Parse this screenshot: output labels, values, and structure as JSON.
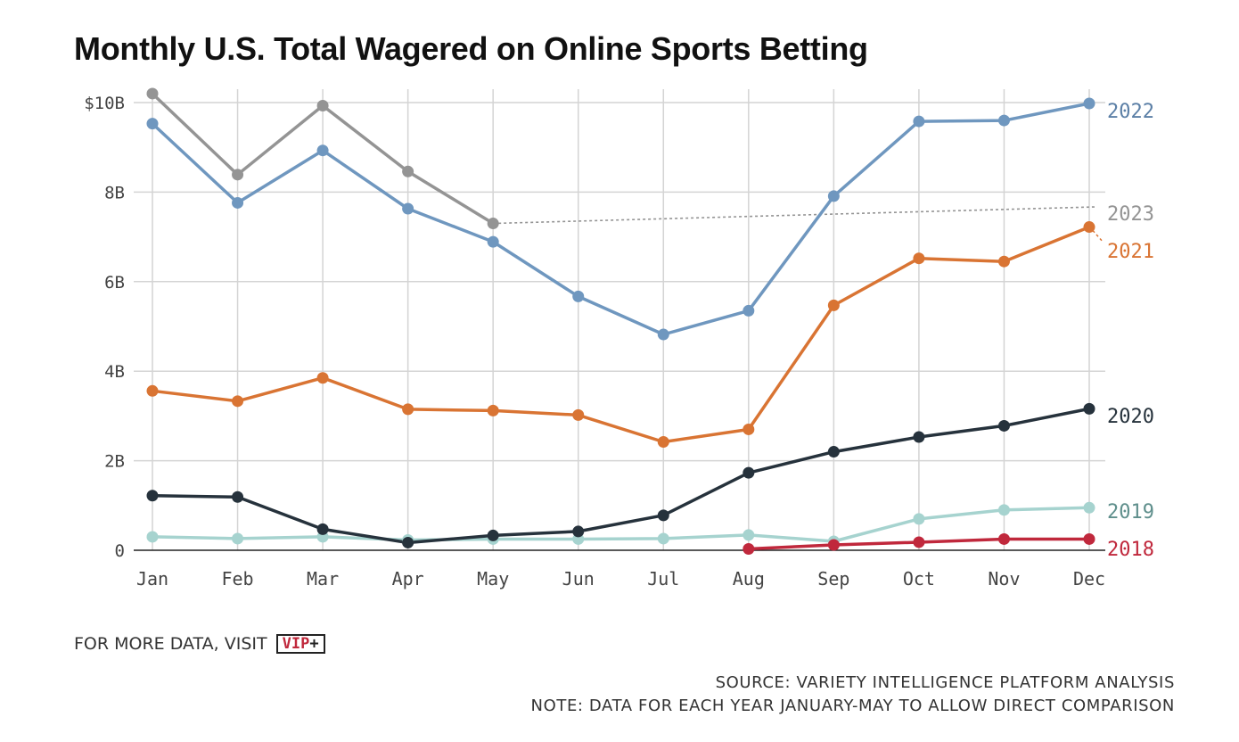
{
  "title": "Monthly U.S. Total Wagered on Online Sports Betting",
  "footer": {
    "cta_text": "FOR MORE DATA, VISIT",
    "badge_main": "VIP",
    "badge_plus": "+",
    "source": "SOURCE: VARIETY INTELLIGENCE PLATFORM ANALYSIS",
    "note": "NOTE: DATA FOR EACH YEAR JANUARY-MAY TO ALLOW DIRECT COMPARISON"
  },
  "chart_data": {
    "type": "line",
    "title": "Monthly U.S. Total Wagered on Online Sports Betting",
    "xlabel": "",
    "ylabel": "",
    "categories": [
      "Jan",
      "Feb",
      "Mar",
      "Apr",
      "May",
      "Jun",
      "Jul",
      "Aug",
      "Sep",
      "Oct",
      "Nov",
      "Dec"
    ],
    "ylim": [
      0,
      10
    ],
    "yticks": [
      0,
      2,
      4,
      6,
      8,
      10
    ],
    "ytick_labels": [
      "0",
      "2B",
      "4B",
      "6B",
      "8B",
      "$10B"
    ],
    "grid": true,
    "legend": "direct labels at line ends",
    "series": [
      {
        "name": "2019",
        "color": "#a6d3cf",
        "values": [
          0.3,
          0.26,
          0.3,
          0.23,
          0.25,
          0.25,
          0.26,
          0.34,
          0.2,
          0.7,
          0.9,
          0.95
        ]
      },
      {
        "name": "2018",
        "color": "#c0283c",
        "values": [
          null,
          null,
          null,
          null,
          null,
          null,
          null,
          0.03,
          0.12,
          0.18,
          0.25,
          0.25
        ]
      },
      {
        "name": "2020",
        "color": "#26323c",
        "values": [
          1.22,
          1.19,
          0.47,
          0.17,
          0.33,
          0.42,
          0.78,
          1.73,
          2.2,
          2.53,
          2.78,
          3.16
        ]
      },
      {
        "name": "2021",
        "color": "#d97433",
        "values": [
          3.56,
          3.33,
          3.85,
          3.15,
          3.12,
          3.02,
          2.42,
          2.7,
          5.47,
          6.52,
          6.45,
          7.22
        ]
      },
      {
        "name": "2022",
        "color": "#6f97bf",
        "values": [
          9.53,
          7.76,
          8.93,
          7.63,
          6.89,
          5.67,
          4.82,
          5.35,
          7.91,
          9.58,
          9.6,
          9.98
        ]
      },
      {
        "name": "2023",
        "color": "#949494",
        "values": [
          10.2,
          8.39,
          9.93,
          8.46,
          7.3,
          null,
          null,
          null,
          null,
          null,
          null,
          null
        ],
        "trend_to_dec": 7.67
      }
    ]
  }
}
